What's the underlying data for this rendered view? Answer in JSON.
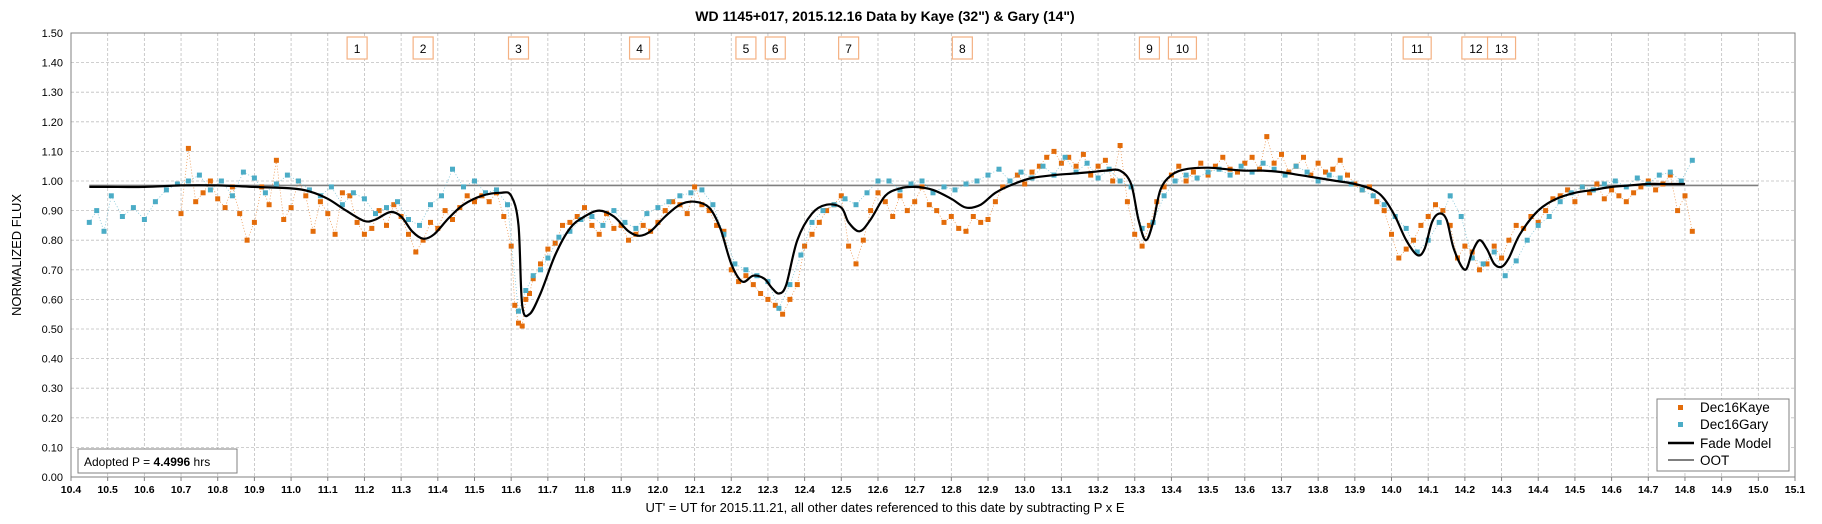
{
  "chart_data": {
    "type": "scatter",
    "title": "WD 1145+017, 2015.12.16 Data by Kaye (32\") & Gary (14\")",
    "xlabel": "UT' = UT for 2015.11.21, all other dates referenced to this date by subtracting P x E",
    "ylabel": "NORMALIZED FLUX",
    "xlim": [
      10.4,
      15.1
    ],
    "ylim": [
      0.0,
      1.5
    ],
    "x_ticks": [
      "10.4",
      "10.5",
      "10.6",
      "10.7",
      "10.8",
      "10.9",
      "11.0",
      "11.1",
      "11.2",
      "11.3",
      "11.4",
      "11.5",
      "11.6",
      "11.7",
      "11.8",
      "11.9",
      "12.0",
      "12.1",
      "12.2",
      "12.3",
      "12.4",
      "12.5",
      "12.6",
      "12.7",
      "12.8",
      "12.9",
      "13.0",
      "13.1",
      "13.2",
      "13.3",
      "13.4",
      "13.5",
      "13.6",
      "13.7",
      "13.8",
      "13.9",
      "14.0",
      "14.1",
      "14.2",
      "14.3",
      "14.4",
      "14.5",
      "14.6",
      "14.7",
      "14.8",
      "14.9",
      "15.0",
      "15.1"
    ],
    "y_ticks": [
      "0.00",
      "0.10",
      "0.20",
      "0.30",
      "0.40",
      "0.50",
      "0.60",
      "0.70",
      "0.80",
      "0.90",
      "1.00",
      "1.10",
      "1.20",
      "1.30",
      "1.40",
      "1.50"
    ],
    "grid": true,
    "legend_position": "bottom-right",
    "colors": {
      "kaye": "#E36C0A",
      "gary": "#4BACC6",
      "model": "#000000",
      "oot": "#7F7F7F"
    },
    "annotation_text": {
      "prefix": "Adopted P = ",
      "value": "4.4996",
      "suffix": " hrs"
    },
    "dip_labels": [
      {
        "label": "1",
        "x": 11.18
      },
      {
        "label": "2",
        "x": 11.36
      },
      {
        "label": "3",
        "x": 11.62
      },
      {
        "label": "4",
        "x": 11.95
      },
      {
        "label": "5",
        "x": 12.24
      },
      {
        "label": "6",
        "x": 12.32
      },
      {
        "label": "7",
        "x": 12.52
      },
      {
        "label": "8",
        "x": 12.83
      },
      {
        "label": "9",
        "x": 13.34
      },
      {
        "label": "10",
        "x": 13.43
      },
      {
        "label": "11",
        "x": 14.07
      },
      {
        "label": "12",
        "x": 14.23
      },
      {
        "label": "13",
        "x": 14.3
      }
    ],
    "oot": {
      "name": "OOT",
      "y": 0.985,
      "x_range": [
        10.45,
        15.0
      ]
    },
    "series": [
      {
        "name": "Dec16Kaye",
        "kind": "markers",
        "x": [
          10.7,
          10.72,
          10.74,
          10.76,
          10.78,
          10.8,
          10.82,
          10.84,
          10.86,
          10.88,
          10.9,
          10.92,
          10.94,
          10.96,
          10.98,
          11.0,
          11.02,
          11.04,
          11.06,
          11.08,
          11.1,
          11.12,
          11.14,
          11.16,
          11.18,
          11.2,
          11.22,
          11.24,
          11.26,
          11.28,
          11.3,
          11.32,
          11.34,
          11.36,
          11.38,
          11.4,
          11.42,
          11.44,
          11.46,
          11.48,
          11.5,
          11.52,
          11.54,
          11.56,
          11.58,
          11.6,
          11.61,
          11.62,
          11.63,
          11.64,
          11.65,
          11.66,
          11.68,
          11.7,
          11.72,
          11.74,
          11.76,
          11.78,
          11.8,
          11.82,
          11.84,
          11.86,
          11.88,
          11.9,
          11.92,
          11.94,
          11.96,
          11.98,
          12.0,
          12.02,
          12.04,
          12.06,
          12.08,
          12.1,
          12.12,
          12.14,
          12.16,
          12.18,
          12.2,
          12.22,
          12.24,
          12.26,
          12.28,
          12.3,
          12.32,
          12.34,
          12.36,
          12.38,
          12.4,
          12.42,
          12.44,
          12.46,
          12.48,
          12.5,
          12.52,
          12.54,
          12.56,
          12.58,
          12.6,
          12.62,
          12.64,
          12.66,
          12.68,
          12.7,
          12.72,
          12.74,
          12.76,
          12.78,
          12.8,
          12.82,
          12.84,
          12.86,
          12.88,
          12.9,
          12.92,
          12.94,
          12.96,
          12.98,
          13.0,
          13.02,
          13.04,
          13.06,
          13.08,
          13.1,
          13.12,
          13.14,
          13.16,
          13.18,
          13.2,
          13.22,
          13.24,
          13.26,
          13.28,
          13.3,
          13.32,
          13.34,
          13.36,
          13.38,
          13.4,
          13.42,
          13.44,
          13.46,
          13.48,
          13.5,
          13.52,
          13.54,
          13.56,
          13.58,
          13.6,
          13.62,
          13.64,
          13.66,
          13.68,
          13.7,
          13.72,
          13.74,
          13.76,
          13.78,
          13.8,
          13.82,
          13.84,
          13.86,
          13.88,
          13.9,
          13.92,
          13.94,
          13.96,
          13.98,
          14.0,
          14.02,
          14.04,
          14.06,
          14.08,
          14.1,
          14.12,
          14.14,
          14.16,
          14.18,
          14.2,
          14.22,
          14.24,
          14.26,
          14.28,
          14.3,
          14.32,
          14.34,
          14.36,
          14.38,
          14.4,
          14.42,
          14.44,
          14.46,
          14.48,
          14.5,
          14.52,
          14.54,
          14.56,
          14.58,
          14.6,
          14.62,
          14.64,
          14.66,
          14.68,
          14.7,
          14.72,
          14.74,
          14.76,
          14.78,
          14.8,
          14.82
        ],
        "y": [
          0.89,
          1.11,
          0.93,
          0.96,
          1.0,
          0.94,
          0.91,
          0.98,
          0.89,
          0.8,
          0.86,
          0.98,
          0.92,
          1.07,
          0.87,
          0.91,
          1.0,
          0.95,
          0.83,
          0.93,
          0.89,
          0.82,
          0.96,
          0.95,
          0.86,
          0.82,
          0.84,
          0.9,
          0.85,
          0.92,
          0.88,
          0.82,
          0.76,
          0.8,
          0.86,
          0.84,
          0.9,
          0.87,
          0.91,
          0.95,
          0.93,
          0.95,
          0.93,
          0.96,
          0.88,
          0.78,
          0.58,
          0.52,
          0.51,
          0.6,
          0.62,
          0.67,
          0.72,
          0.77,
          0.79,
          0.85,
          0.86,
          0.88,
          0.91,
          0.85,
          0.82,
          0.89,
          0.84,
          0.85,
          0.8,
          0.82,
          0.85,
          0.83,
          0.86,
          0.9,
          0.93,
          0.92,
          0.89,
          0.98,
          0.92,
          0.9,
          0.85,
          0.83,
          0.7,
          0.66,
          0.68,
          0.65,
          0.62,
          0.6,
          0.58,
          0.55,
          0.6,
          0.65,
          0.78,
          0.82,
          0.86,
          0.9,
          0.92,
          0.95,
          0.78,
          0.72,
          0.8,
          0.9,
          0.96,
          0.93,
          0.88,
          0.95,
          0.9,
          0.93,
          0.98,
          0.92,
          0.9,
          0.86,
          0.88,
          0.84,
          0.83,
          0.88,
          0.86,
          0.87,
          0.93,
          0.98,
          1.0,
          1.02,
          0.99,
          1.03,
          1.05,
          1.08,
          1.1,
          1.06,
          1.08,
          1.05,
          1.09,
          1.02,
          1.05,
          1.07,
          1.0,
          1.12,
          0.93,
          0.82,
          0.78,
          0.85,
          0.93,
          0.98,
          1.02,
          1.05,
          1.0,
          1.03,
          1.06,
          1.02,
          1.05,
          1.08,
          1.04,
          1.03,
          1.06,
          1.08,
          1.04,
          1.15,
          1.06,
          1.09,
          1.03,
          1.05,
          1.08,
          1.02,
          1.06,
          1.03,
          1.04,
          1.07,
          1.02,
          0.99,
          0.97,
          0.98,
          0.93,
          0.9,
          0.82,
          0.74,
          0.77,
          0.8,
          0.85,
          0.88,
          0.92,
          0.9,
          0.85,
          0.74,
          0.78,
          0.76,
          0.7,
          0.72,
          0.78,
          0.74,
          0.8,
          0.85,
          0.84,
          0.88,
          0.86,
          0.9,
          0.94,
          0.95,
          0.97,
          0.93,
          0.98,
          0.96,
          0.99,
          0.94,
          0.97,
          0.95,
          0.93,
          0.96,
          0.98,
          1.0,
          0.97,
          0.99,
          1.02,
          0.9,
          0.95,
          0.83
        ]
      },
      {
        "name": "Dec16Gary",
        "kind": "markers",
        "x": [
          10.45,
          10.47,
          10.49,
          10.51,
          10.54,
          10.57,
          10.6,
          10.63,
          10.66,
          10.69,
          10.72,
          10.75,
          10.78,
          10.81,
          10.84,
          10.87,
          10.9,
          10.93,
          10.96,
          10.99,
          11.02,
          11.05,
          11.08,
          11.11,
          11.14,
          11.17,
          11.2,
          11.23,
          11.26,
          11.29,
          11.32,
          11.35,
          11.38,
          11.41,
          11.44,
          11.47,
          11.5,
          11.53,
          11.56,
          11.59,
          11.62,
          11.64,
          11.66,
          11.68,
          11.7,
          11.73,
          11.76,
          11.79,
          11.82,
          11.85,
          11.88,
          11.91,
          11.94,
          11.97,
          12.0,
          12.03,
          12.06,
          12.09,
          12.12,
          12.15,
          12.18,
          12.21,
          12.24,
          12.27,
          12.3,
          12.33,
          12.36,
          12.39,
          12.42,
          12.45,
          12.48,
          12.51,
          12.54,
          12.57,
          12.6,
          12.63,
          12.66,
          12.69,
          12.72,
          12.75,
          12.78,
          12.81,
          12.84,
          12.87,
          12.9,
          12.93,
          12.96,
          12.99,
          13.02,
          13.05,
          13.08,
          13.11,
          13.14,
          13.17,
          13.2,
          13.23,
          13.26,
          13.29,
          13.32,
          13.35,
          13.38,
          13.41,
          13.44,
          13.47,
          13.5,
          13.53,
          13.56,
          13.59,
          13.62,
          13.65,
          13.68,
          13.71,
          13.74,
          13.77,
          13.8,
          13.83,
          13.86,
          13.89,
          13.92,
          13.95,
          13.98,
          14.01,
          14.04,
          14.07,
          14.1,
          14.13,
          14.16,
          14.19,
          14.22,
          14.25,
          14.28,
          14.31,
          14.34,
          14.37,
          14.4,
          14.43,
          14.46,
          14.49,
          14.52,
          14.55,
          14.58,
          14.61,
          14.64,
          14.67,
          14.7,
          14.73,
          14.76,
          14.79,
          14.82
        ],
        "y": [
          0.86,
          0.9,
          0.83,
          0.95,
          0.88,
          0.91,
          0.87,
          0.93,
          0.97,
          0.99,
          1.0,
          1.02,
          0.97,
          1.0,
          0.95,
          1.03,
          1.01,
          0.96,
          0.99,
          1.02,
          1.0,
          0.97,
          0.95,
          0.98,
          0.92,
          0.96,
          0.94,
          0.89,
          0.91,
          0.93,
          0.87,
          0.85,
          0.92,
          0.95,
          1.04,
          0.98,
          1.0,
          0.96,
          0.97,
          0.92,
          0.56,
          0.63,
          0.68,
          0.7,
          0.74,
          0.81,
          0.83,
          0.87,
          0.88,
          0.85,
          0.9,
          0.86,
          0.84,
          0.89,
          0.91,
          0.93,
          0.95,
          0.96,
          0.97,
          0.92,
          0.82,
          0.72,
          0.7,
          0.68,
          0.66,
          0.57,
          0.65,
          0.75,
          0.86,
          0.9,
          0.92,
          0.94,
          0.92,
          0.96,
          1.0,
          1.0,
          0.97,
          0.99,
          1.0,
          0.96,
          0.98,
          0.97,
          0.99,
          1.0,
          1.02,
          1.04,
          1.0,
          1.03,
          1.01,
          1.05,
          1.02,
          1.08,
          1.03,
          1.06,
          1.01,
          1.04,
          1.0,
          0.98,
          0.84,
          0.86,
          0.95,
          1.0,
          1.02,
          1.01,
          1.03,
          1.04,
          1.02,
          1.05,
          1.03,
          1.06,
          1.04,
          1.02,
          1.05,
          1.03,
          1.0,
          1.02,
          1.01,
          0.99,
          0.97,
          0.95,
          0.92,
          0.88,
          0.84,
          0.76,
          0.8,
          0.86,
          0.95,
          0.88,
          0.74,
          0.72,
          0.76,
          0.68,
          0.73,
          0.8,
          0.85,
          0.88,
          0.93,
          0.96,
          0.98,
          0.97,
          0.99,
          1.0,
          0.98,
          1.01,
          0.99,
          1.02,
          1.03,
          1.0,
          1.07
        ]
      },
      {
        "name": "Fade Model",
        "kind": "line",
        "x": [
          10.45,
          10.5,
          10.6,
          10.7,
          10.8,
          10.9,
          11.0,
          11.05,
          11.1,
          11.15,
          11.2,
          11.23,
          11.27,
          11.3,
          11.33,
          11.36,
          11.39,
          11.43,
          11.47,
          11.52,
          11.57,
          11.6,
          11.62,
          11.63,
          11.65,
          11.68,
          11.72,
          11.76,
          11.8,
          11.84,
          11.88,
          11.92,
          11.95,
          11.98,
          12.02,
          12.06,
          12.1,
          12.14,
          12.17,
          12.2,
          12.23,
          12.26,
          12.29,
          12.31,
          12.33,
          12.35,
          12.38,
          12.42,
          12.46,
          12.5,
          12.52,
          12.55,
          12.58,
          12.62,
          12.66,
          12.7,
          12.75,
          12.8,
          12.84,
          12.88,
          12.92,
          12.97,
          13.02,
          13.08,
          13.13,
          13.18,
          13.22,
          13.26,
          13.29,
          13.31,
          13.33,
          13.35,
          13.37,
          13.4,
          13.44,
          13.5,
          13.55,
          13.6,
          13.65,
          13.7,
          13.75,
          13.8,
          13.85,
          13.9,
          13.95,
          13.98,
          14.01,
          14.04,
          14.07,
          14.09,
          14.11,
          14.13,
          14.15,
          14.17,
          14.2,
          14.22,
          14.24,
          14.26,
          14.28,
          14.3,
          14.32,
          14.35,
          14.4,
          14.45,
          14.5,
          14.55,
          14.6,
          14.65,
          14.7,
          14.75,
          14.8
        ],
        "y": [
          0.98,
          0.98,
          0.98,
          0.985,
          0.985,
          0.98,
          0.975,
          0.965,
          0.94,
          0.9,
          0.865,
          0.87,
          0.895,
          0.88,
          0.83,
          0.805,
          0.82,
          0.875,
          0.92,
          0.95,
          0.96,
          0.95,
          0.85,
          0.58,
          0.55,
          0.62,
          0.75,
          0.84,
          0.88,
          0.9,
          0.88,
          0.83,
          0.815,
          0.83,
          0.88,
          0.92,
          0.93,
          0.91,
          0.84,
          0.72,
          0.66,
          0.68,
          0.67,
          0.64,
          0.62,
          0.65,
          0.8,
          0.89,
          0.92,
          0.91,
          0.86,
          0.83,
          0.87,
          0.95,
          0.975,
          0.98,
          0.97,
          0.94,
          0.91,
          0.92,
          0.96,
          0.99,
          1.01,
          1.02,
          1.025,
          1.03,
          1.035,
          1.035,
          0.99,
          0.87,
          0.8,
          0.86,
          0.97,
          1.02,
          1.04,
          1.045,
          1.04,
          1.035,
          1.035,
          1.03,
          1.02,
          1.01,
          1.0,
          0.99,
          0.97,
          0.94,
          0.88,
          0.8,
          0.75,
          0.77,
          0.86,
          0.89,
          0.87,
          0.77,
          0.7,
          0.76,
          0.8,
          0.77,
          0.72,
          0.71,
          0.74,
          0.82,
          0.9,
          0.94,
          0.96,
          0.97,
          0.98,
          0.985,
          0.99,
          0.99,
          0.99
        ]
      }
    ]
  }
}
